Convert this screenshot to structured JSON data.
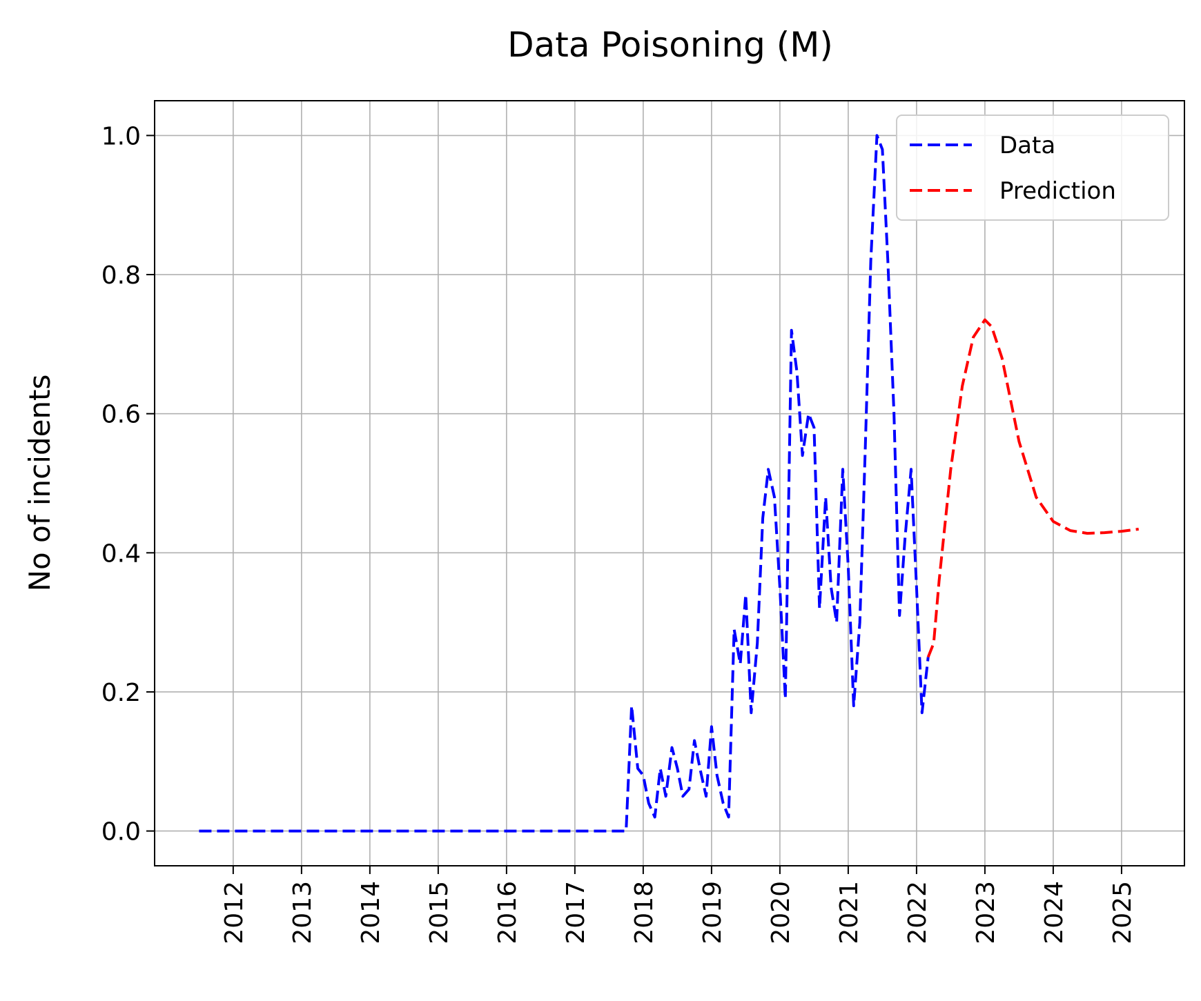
{
  "chart_data": {
    "type": "line",
    "title": "Data Poisoning (M)",
    "xlabel": "",
    "ylabel": "No of incidents",
    "xlim": [
      2010.85,
      2025.92
    ],
    "ylim": [
      -0.05,
      1.05
    ],
    "x_ticks": [
      "2012",
      "2013",
      "2014",
      "2015",
      "2016",
      "2017",
      "2018",
      "2019",
      "2020",
      "2021",
      "2022",
      "2023",
      "2024",
      "2025"
    ],
    "y_ticks": [
      "0.0",
      "0.2",
      "0.4",
      "0.6",
      "0.8",
      "1.0"
    ],
    "grid": true,
    "legend_position": "top-right",
    "series": [
      {
        "name": "Data",
        "color": "#0000ff",
        "style": "dashed",
        "points": [
          [
            2011.5,
            0.0
          ],
          [
            2012.0,
            0.0
          ],
          [
            2013.0,
            0.0
          ],
          [
            2014.0,
            0.0
          ],
          [
            2015.0,
            0.0
          ],
          [
            2016.0,
            0.0
          ],
          [
            2017.0,
            0.0
          ],
          [
            2017.75,
            0.0
          ],
          [
            2017.83,
            0.18
          ],
          [
            2017.92,
            0.09
          ],
          [
            2018.0,
            0.08
          ],
          [
            2018.08,
            0.04
          ],
          [
            2018.17,
            0.02
          ],
          [
            2018.25,
            0.09
          ],
          [
            2018.33,
            0.05
          ],
          [
            2018.42,
            0.12
          ],
          [
            2018.5,
            0.09
          ],
          [
            2018.58,
            0.05
          ],
          [
            2018.67,
            0.06
          ],
          [
            2018.75,
            0.13
          ],
          [
            2018.83,
            0.09
          ],
          [
            2018.92,
            0.05
          ],
          [
            2019.0,
            0.15
          ],
          [
            2019.08,
            0.08
          ],
          [
            2019.17,
            0.04
          ],
          [
            2019.25,
            0.02
          ],
          [
            2019.33,
            0.29
          ],
          [
            2019.42,
            0.24
          ],
          [
            2019.5,
            0.34
          ],
          [
            2019.58,
            0.17
          ],
          [
            2019.67,
            0.27
          ],
          [
            2019.75,
            0.45
          ],
          [
            2019.83,
            0.52
          ],
          [
            2019.92,
            0.48
          ],
          [
            2020.0,
            0.35
          ],
          [
            2020.08,
            0.19
          ],
          [
            2020.17,
            0.72
          ],
          [
            2020.25,
            0.66
          ],
          [
            2020.33,
            0.54
          ],
          [
            2020.42,
            0.6
          ],
          [
            2020.5,
            0.58
          ],
          [
            2020.58,
            0.32
          ],
          [
            2020.67,
            0.48
          ],
          [
            2020.75,
            0.35
          ],
          [
            2020.83,
            0.3
          ],
          [
            2020.92,
            0.52
          ],
          [
            2021.0,
            0.38
          ],
          [
            2021.08,
            0.18
          ],
          [
            2021.17,
            0.3
          ],
          [
            2021.25,
            0.55
          ],
          [
            2021.33,
            0.82
          ],
          [
            2021.42,
            1.0
          ],
          [
            2021.5,
            0.98
          ],
          [
            2021.58,
            0.82
          ],
          [
            2021.67,
            0.6
          ],
          [
            2021.75,
            0.31
          ],
          [
            2021.83,
            0.42
          ],
          [
            2021.92,
            0.52
          ],
          [
            2022.0,
            0.35
          ],
          [
            2022.08,
            0.17
          ],
          [
            2022.17,
            0.25
          ]
        ]
      },
      {
        "name": "Prediction",
        "color": "#ff0000",
        "style": "dashed",
        "points": [
          [
            2022.17,
            0.25
          ],
          [
            2022.25,
            0.27
          ],
          [
            2022.33,
            0.36
          ],
          [
            2022.5,
            0.52
          ],
          [
            2022.67,
            0.64
          ],
          [
            2022.83,
            0.71
          ],
          [
            2023.0,
            0.735
          ],
          [
            2023.1,
            0.725
          ],
          [
            2023.25,
            0.68
          ],
          [
            2023.5,
            0.56
          ],
          [
            2023.75,
            0.48
          ],
          [
            2024.0,
            0.445
          ],
          [
            2024.25,
            0.432
          ],
          [
            2024.5,
            0.428
          ],
          [
            2024.75,
            0.429
          ],
          [
            2025.0,
            0.431
          ],
          [
            2025.25,
            0.434
          ]
        ]
      }
    ]
  }
}
